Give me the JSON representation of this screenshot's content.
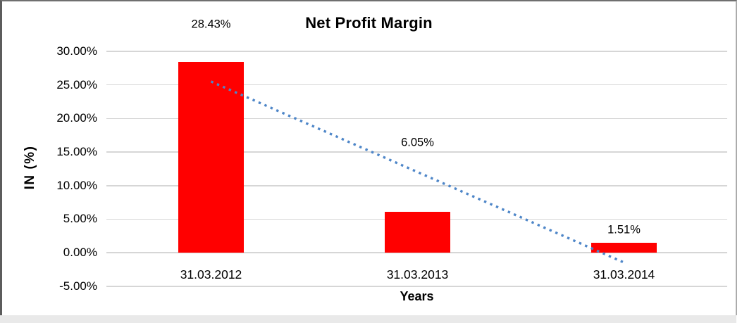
{
  "chart_data": {
    "type": "bar",
    "title": "Net Profit Margin",
    "xlabel": "Years",
    "ylabel": "IN (%)",
    "categories": [
      "31.03.2012",
      "31.03.2013",
      "31.03.2014"
    ],
    "values": [
      28.43,
      6.05,
      1.51
    ],
    "data_labels": [
      "28.43%",
      "6.05%",
      "1.51%"
    ],
    "yticks": [
      {
        "value": 30,
        "label": "30.00%"
      },
      {
        "value": 25,
        "label": "25.00%"
      },
      {
        "value": 20,
        "label": "20.00%"
      },
      {
        "value": 15,
        "label": "15.00%"
      },
      {
        "value": 10,
        "label": "10.00%"
      },
      {
        "value": 5,
        "label": "5.00%"
      },
      {
        "value": 0,
        "label": "0.00%"
      },
      {
        "value": -5,
        "label": "-5.00%"
      }
    ],
    "ylim": [
      -5,
      30
    ],
    "grid": true,
    "legend_position": "none",
    "bar_color": "#FF0000",
    "trendline": {
      "type": "linear",
      "style": "dotted",
      "color": "#4E86C8",
      "from_category_index": 0,
      "to_category_index": 2,
      "start_value": 25.5,
      "end_value": -1.45
    }
  }
}
